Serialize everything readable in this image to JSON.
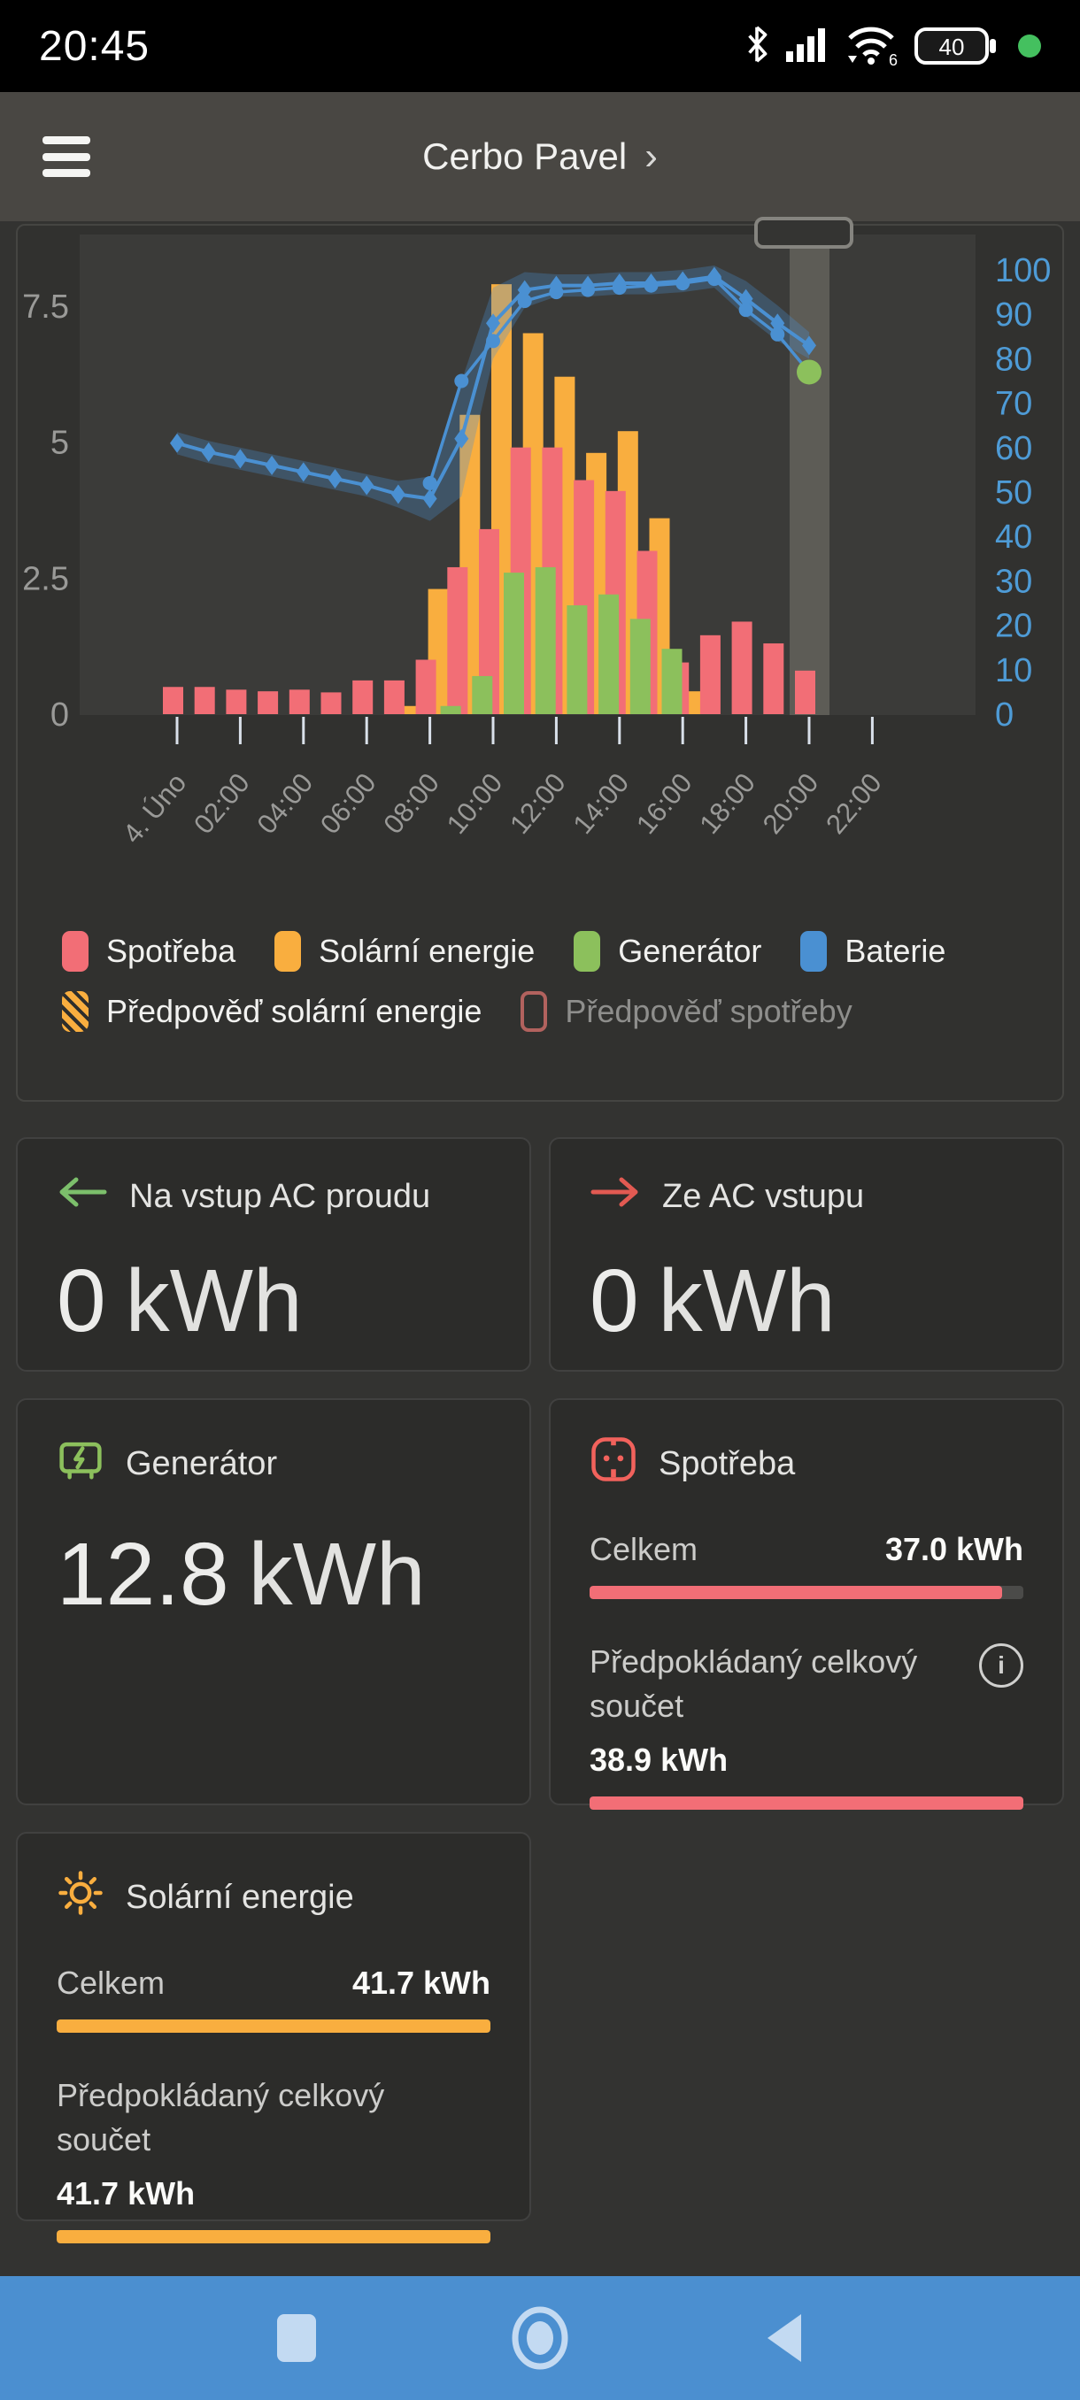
{
  "status_bar": {
    "time": "20:45",
    "battery_percent": "40"
  },
  "header": {
    "title": "Cerbo Pavel",
    "chevron": "›"
  },
  "chart_data": {
    "type": "bar",
    "title": "",
    "x_tick_labels": [
      "4. Úno",
      "02:00",
      "04:00",
      "06:00",
      "08:00",
      "10:00",
      "12:00",
      "14:00",
      "16:00",
      "18:00",
      "20:00",
      "22:00"
    ],
    "left_axis": {
      "unit": "kWh",
      "ticks": [
        "0",
        "2.5",
        "5",
        "7.5"
      ]
    },
    "right_axis": {
      "unit": "%",
      "ticks": [
        "0",
        "10",
        "20",
        "30",
        "40",
        "50",
        "60",
        "70",
        "80",
        "90",
        "100"
      ]
    },
    "hours": [
      0,
      1,
      2,
      3,
      4,
      5,
      6,
      7,
      8,
      9,
      10,
      11,
      12,
      13,
      14,
      15,
      16,
      17,
      18,
      19,
      20
    ],
    "series": {
      "consumption": {
        "label": "Spotřeba",
        "color": "#F26E76",
        "values": [
          0.5,
          0.5,
          0.45,
          0.42,
          0.45,
          0.4,
          0.62,
          0.62,
          1.0,
          2.7,
          3.4,
          4.9,
          4.9,
          4.3,
          4.1,
          3.0,
          0.95,
          1.45,
          1.7,
          1.3,
          0.8
        ]
      },
      "solar": {
        "label": "Solární energie",
        "color": "#F9AE3F",
        "values": [
          0,
          0,
          0,
          0,
          0,
          0,
          0,
          0.15,
          2.3,
          5.5,
          7.9,
          7.0,
          6.2,
          4.8,
          5.2,
          3.6,
          0.42,
          0,
          0,
          0,
          0
        ]
      },
      "generator": {
        "label": "Generátor",
        "color": "#8CC05C",
        "values": [
          0,
          0,
          0,
          0,
          0,
          0,
          0,
          0,
          0.15,
          0.7,
          2.6,
          2.7,
          2.0,
          2.2,
          1.75,
          1.2,
          0,
          0,
          0,
          0,
          0
        ]
      },
      "battery": {
        "label": "Baterie",
        "color": "#4A90D2",
        "axis": "right",
        "diamond_values": [
          61,
          59,
          57.5,
          56,
          54.5,
          53,
          51.5,
          49.5,
          48.5,
          62,
          88,
          95.5,
          96.5,
          96.5,
          97,
          97,
          97.5,
          98.5,
          93.5,
          88,
          83
        ],
        "circle_start_hour": 8,
        "circle_values": [
          52,
          75,
          84,
          93,
          95,
          95.5,
          96,
          96.5,
          97,
          98,
          91,
          85.5,
          77
        ],
        "band_delta": [
          2.5,
          2.5,
          2.5,
          2.5,
          2.5,
          2.5,
          2.5,
          3,
          5,
          13,
          8,
          4,
          2.5,
          2.5,
          2.5,
          2.5,
          2.5,
          2.5,
          4,
          4,
          3
        ],
        "end_dot_color": "#8CC05C"
      },
      "solar_forecast": {
        "label": "Předpověď solární energie",
        "color": "#F9AE3F",
        "hatched": true,
        "bars": [
          {
            "hour": 16,
            "from": 0.42,
            "to": 0.85
          }
        ]
      },
      "consumption_forecast": {
        "label": "Předpověď spotřeby",
        "color": "#B2625E",
        "enabled": false
      }
    },
    "cursor": {
      "hour": 20
    }
  },
  "cards": {
    "ac_in": {
      "title": "Na vstup AC proudu",
      "value": "0",
      "unit": "kWh",
      "arrow_color": "#7CBF6B"
    },
    "ac_out": {
      "title": "Ze AC vstupu",
      "value": "0",
      "unit": "kWh",
      "arrow_color": "#E25A52"
    },
    "generator": {
      "title": "Generátor",
      "value": "12.8",
      "unit": "kWh",
      "icon_color": "#8CC05C"
    },
    "consumption": {
      "title": "Spotřeba",
      "icon_color": "#F2625C",
      "bar_color": "#F26E76",
      "total_label": "Celkem",
      "total_value": "37.0 kWh",
      "total_bar_percent": 95,
      "forecast_label": "Předpokládaný celkový součet",
      "forecast_value": "38.9 kWh",
      "forecast_bar_percent": 100
    },
    "solar": {
      "title": "Solární energie",
      "icon_color": "#F9AE3F",
      "bar_color": "#F9AE3F",
      "total_label": "Celkem",
      "total_value": "41.7 kWh",
      "total_bar_percent": 100,
      "forecast_label": "Předpokládaný celkový součet",
      "forecast_value": "41.7 kWh",
      "forecast_bar_percent": 100
    }
  }
}
